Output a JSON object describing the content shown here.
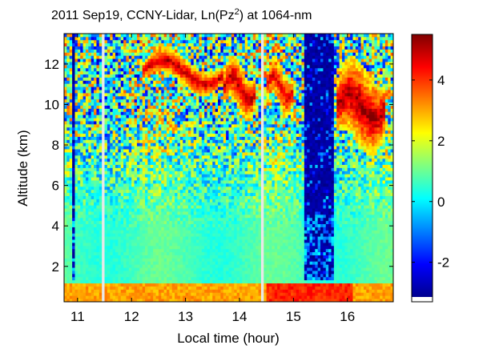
{
  "chart_data": {
    "type": "heatmap",
    "title": "2011 Sep19, CCNY-Lidar, Ln(Pz",
    "title_sup": "2",
    "title_suffix": ") at 1064-nm",
    "xlabel": "Local time (hour)",
    "ylabel": "Altitude (km)",
    "xlim": [
      10.75,
      16.85
    ],
    "ylim": [
      0.25,
      13.5
    ],
    "xticks": [
      11,
      12,
      13,
      14,
      15,
      16
    ],
    "xtick_labels": [
      "11",
      "12",
      "13",
      "14",
      "15",
      "16"
    ],
    "yticks": [
      2,
      4,
      6,
      8,
      10,
      12
    ],
    "ytick_labels": [
      "2",
      "4",
      "6",
      "8",
      "10",
      "12"
    ],
    "colorbar": {
      "colormap": "jet",
      "clim": [
        -3.3,
        5.5
      ],
      "ticks": [
        -2,
        0,
        2,
        4
      ],
      "tick_labels": [
        "-2",
        "0",
        "2",
        "4"
      ]
    },
    "data_gaps_hours": [
      [
        11.45,
        11.5
      ],
      [
        14.4,
        14.45
      ]
    ],
    "background_value": 0.6,
    "features": {
      "boundary_layer": {
        "top_km": 1.2,
        "value": 3.0
      },
      "cirrus_layers": [
        {
          "time_start": 12.2,
          "time_end": 13.7,
          "alt_bottom_km": 10.9,
          "alt_top_km": 12.3,
          "value_max": 5.0
        },
        {
          "time_start": 13.7,
          "time_end": 14.3,
          "alt_bottom_km": 9.6,
          "alt_top_km": 12.0,
          "value_max": 5.0
        },
        {
          "time_start": 14.5,
          "time_end": 15.0,
          "alt_bottom_km": 9.8,
          "alt_top_km": 11.9,
          "value_max": 4.6
        },
        {
          "time_start": 15.8,
          "time_end": 16.7,
          "alt_bottom_km": 7.8,
          "alt_top_km": 12.0,
          "value_max": 5.3
        }
      ],
      "attenuated_columns": [
        {
          "time_start": 10.92,
          "time_end": 10.96,
          "value": -3.0
        },
        {
          "time_start": 15.2,
          "time_end": 15.75,
          "value": -3.0
        }
      ]
    }
  }
}
